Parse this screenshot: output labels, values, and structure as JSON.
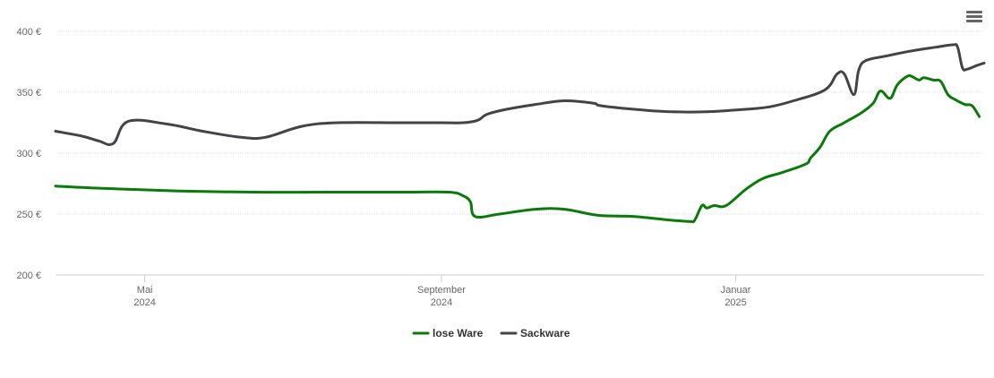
{
  "menu": {
    "icon": "hamburger-menu-icon"
  },
  "chart_data": {
    "type": "line",
    "title": "",
    "xlabel": "",
    "ylabel": "",
    "ylim": [
      200,
      400
    ],
    "y_ticks": [
      {
        "value": 200,
        "label": "200 €"
      },
      {
        "value": 250,
        "label": "250 €"
      },
      {
        "value": 300,
        "label": "300 €"
      },
      {
        "value": 350,
        "label": "350 €"
      },
      {
        "value": 400,
        "label": "400 €"
      }
    ],
    "x_range": [
      "2024-03-25",
      "2025-03-30"
    ],
    "x_ticks": [
      {
        "date": "2024-05-01",
        "month": "Mai",
        "year": "2024"
      },
      {
        "date": "2024-09-01",
        "month": "September",
        "year": "2024"
      },
      {
        "date": "2025-01-01",
        "month": "Januar",
        "year": "2025"
      }
    ],
    "grid": true,
    "legend_position": "bottom-center",
    "series": [
      {
        "name": "lose Ware",
        "color": "#0b7a0b",
        "points": [
          [
            "2024-03-25",
            273
          ],
          [
            "2024-04-15",
            271
          ],
          [
            "2024-05-15",
            269
          ],
          [
            "2024-06-15",
            268
          ],
          [
            "2024-07-15",
            268
          ],
          [
            "2024-08-15",
            268
          ],
          [
            "2024-09-04",
            268
          ],
          [
            "2024-09-10",
            265
          ],
          [
            "2024-09-13",
            260
          ],
          [
            "2024-09-15",
            248
          ],
          [
            "2024-09-25",
            250
          ],
          [
            "2024-10-10",
            254
          ],
          [
            "2024-10-22",
            254
          ],
          [
            "2024-11-05",
            249
          ],
          [
            "2024-11-20",
            248
          ],
          [
            "2024-12-05",
            245
          ],
          [
            "2024-12-13",
            244
          ],
          [
            "2024-12-15",
            245
          ],
          [
            "2024-12-18",
            257
          ],
          [
            "2024-12-20",
            255
          ],
          [
            "2024-12-23",
            257
          ],
          [
            "2024-12-28",
            257
          ],
          [
            "2025-01-05",
            270
          ],
          [
            "2025-01-12",
            279
          ],
          [
            "2025-01-20",
            284
          ],
          [
            "2025-01-30",
            291
          ],
          [
            "2025-02-01",
            296
          ],
          [
            "2025-02-05",
            305
          ],
          [
            "2025-02-09",
            318
          ],
          [
            "2025-02-15",
            325
          ],
          [
            "2025-02-22",
            333
          ],
          [
            "2025-02-27",
            341
          ],
          [
            "2025-03-02",
            351
          ],
          [
            "2025-03-06",
            345
          ],
          [
            "2025-03-09",
            356
          ],
          [
            "2025-03-13",
            363
          ],
          [
            "2025-03-15",
            363
          ],
          [
            "2025-03-18",
            360
          ],
          [
            "2025-03-20",
            362
          ],
          [
            "2025-03-24",
            360
          ],
          [
            "2025-03-27",
            359
          ],
          [
            "2025-03-30",
            348
          ],
          [
            "2025-04-02",
            344
          ],
          [
            "2025-04-06",
            340
          ],
          [
            "2025-04-09",
            339
          ],
          [
            "2025-04-12",
            330
          ]
        ]
      },
      {
        "name": "Sackware",
        "color": "#434348",
        "points": [
          [
            "2024-03-25",
            318
          ],
          [
            "2024-04-05",
            314
          ],
          [
            "2024-04-12",
            310
          ],
          [
            "2024-04-18",
            308
          ],
          [
            "2024-04-24",
            326
          ],
          [
            "2024-05-10",
            324
          ],
          [
            "2024-05-25",
            318
          ],
          [
            "2024-06-10",
            313
          ],
          [
            "2024-06-20",
            313
          ],
          [
            "2024-07-05",
            322
          ],
          [
            "2024-07-20",
            325
          ],
          [
            "2024-08-15",
            325
          ],
          [
            "2024-09-01",
            325
          ],
          [
            "2024-09-10",
            325
          ],
          [
            "2024-09-16",
            327
          ],
          [
            "2024-09-20",
            332
          ],
          [
            "2024-09-28",
            336
          ],
          [
            "2024-10-10",
            340
          ],
          [
            "2024-10-22",
            343
          ],
          [
            "2024-11-03",
            341
          ],
          [
            "2024-11-06",
            339
          ],
          [
            "2024-11-20",
            336
          ],
          [
            "2024-12-05",
            334
          ],
          [
            "2024-12-20",
            334
          ],
          [
            "2025-01-05",
            336
          ],
          [
            "2025-01-15",
            338
          ],
          [
            "2025-01-25",
            343
          ],
          [
            "2025-02-07",
            352
          ],
          [
            "2025-02-12",
            365
          ],
          [
            "2025-02-15",
            365
          ],
          [
            "2025-02-19",
            348
          ],
          [
            "2025-02-21",
            368
          ],
          [
            "2025-02-24",
            376
          ],
          [
            "2025-03-05",
            380
          ],
          [
            "2025-03-15",
            384
          ],
          [
            "2025-03-25",
            387
          ],
          [
            "2025-04-01",
            389
          ],
          [
            "2025-04-03",
            387
          ],
          [
            "2025-04-05",
            370
          ],
          [
            "2025-04-07",
            369
          ],
          [
            "2025-04-11",
            372
          ],
          [
            "2025-04-14",
            374
          ]
        ]
      }
    ]
  }
}
